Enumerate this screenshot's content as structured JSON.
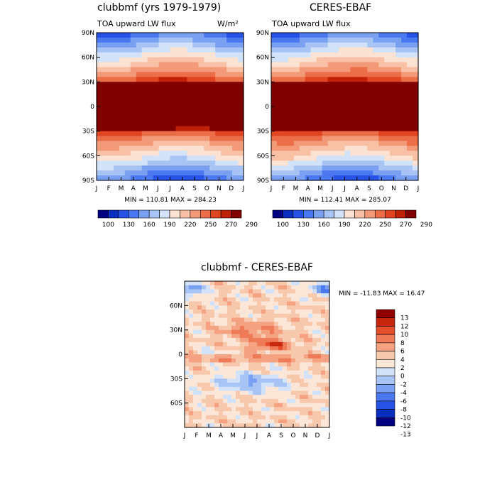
{
  "chart_data": [
    {
      "type": "heatmap",
      "title": "clubbmf (yrs 1979-1979)",
      "subtitle_left": "TOA upward LW flux",
      "units": "W/m²",
      "x_ticks": [
        "J",
        "F",
        "M",
        "A",
        "M",
        "J",
        "J",
        "A",
        "S",
        "O",
        "N",
        "D",
        "J"
      ],
      "y_ticks": [
        "90N",
        "60N",
        "30N",
        "0",
        "30S",
        "60S",
        "90S"
      ],
      "min_max": "MIN = 110.81 MAX = 284.23",
      "min": 110.81,
      "max": 284.23,
      "colorbar_levels": [
        "100",
        "130",
        "160",
        "190",
        "220",
        "250",
        "270",
        "290"
      ]
    },
    {
      "type": "heatmap",
      "title": "CERES-EBAF",
      "subtitle_left": "TOA upward LW flux",
      "x_ticks": [
        "J",
        "F",
        "M",
        "A",
        "M",
        "J",
        "J",
        "A",
        "S",
        "O",
        "N",
        "D",
        "J"
      ],
      "y_ticks": [
        "90N",
        "60N",
        "30N",
        "0",
        "30S",
        "60S",
        "90S"
      ],
      "min_max": "MIN = 112.41 MAX = 285.07",
      "min": 112.41,
      "max": 285.07,
      "colorbar_levels": [
        "100",
        "130",
        "160",
        "190",
        "220",
        "250",
        "270",
        "290"
      ]
    },
    {
      "type": "heatmap",
      "title": "clubbmf - CERES-EBAF",
      "x_ticks": [
        "J",
        "F",
        "M",
        "A",
        "M",
        "J",
        "J",
        "A",
        "S",
        "O",
        "N",
        "D",
        "J"
      ],
      "y_ticks": [
        "60N",
        "30N",
        "0",
        "30S",
        "60S"
      ],
      "min_max": "MIN =  -11.83 MAX =   16.47",
      "min": -11.83,
      "max": 16.47,
      "colorbar_levels": [
        "13",
        "12",
        "10",
        "8",
        "6",
        "4",
        "2",
        "0",
        "-2",
        "-4",
        "-6",
        "-8",
        "-10",
        "-12",
        "-13"
      ]
    }
  ],
  "colors": {
    "flux_scale": [
      "#000080",
      "#0a2fc0",
      "#2652e6",
      "#4a78f0",
      "#7aa0f2",
      "#a8c4f4",
      "#d2e2f8",
      "#fbe2d2",
      "#f8c0a4",
      "#f29a78",
      "#ec6e48",
      "#e04420",
      "#c02008",
      "#800000"
    ],
    "diff_scale": [
      "#000080",
      "#0a2fc0",
      "#2652e6",
      "#4a78f0",
      "#7aa0f2",
      "#a8c4f4",
      "#d2e2f8",
      "#fbe6d8",
      "#f8c8ac",
      "#f4a282",
      "#ee7a58",
      "#e44e2a",
      "#c8260c",
      "#900000"
    ]
  }
}
